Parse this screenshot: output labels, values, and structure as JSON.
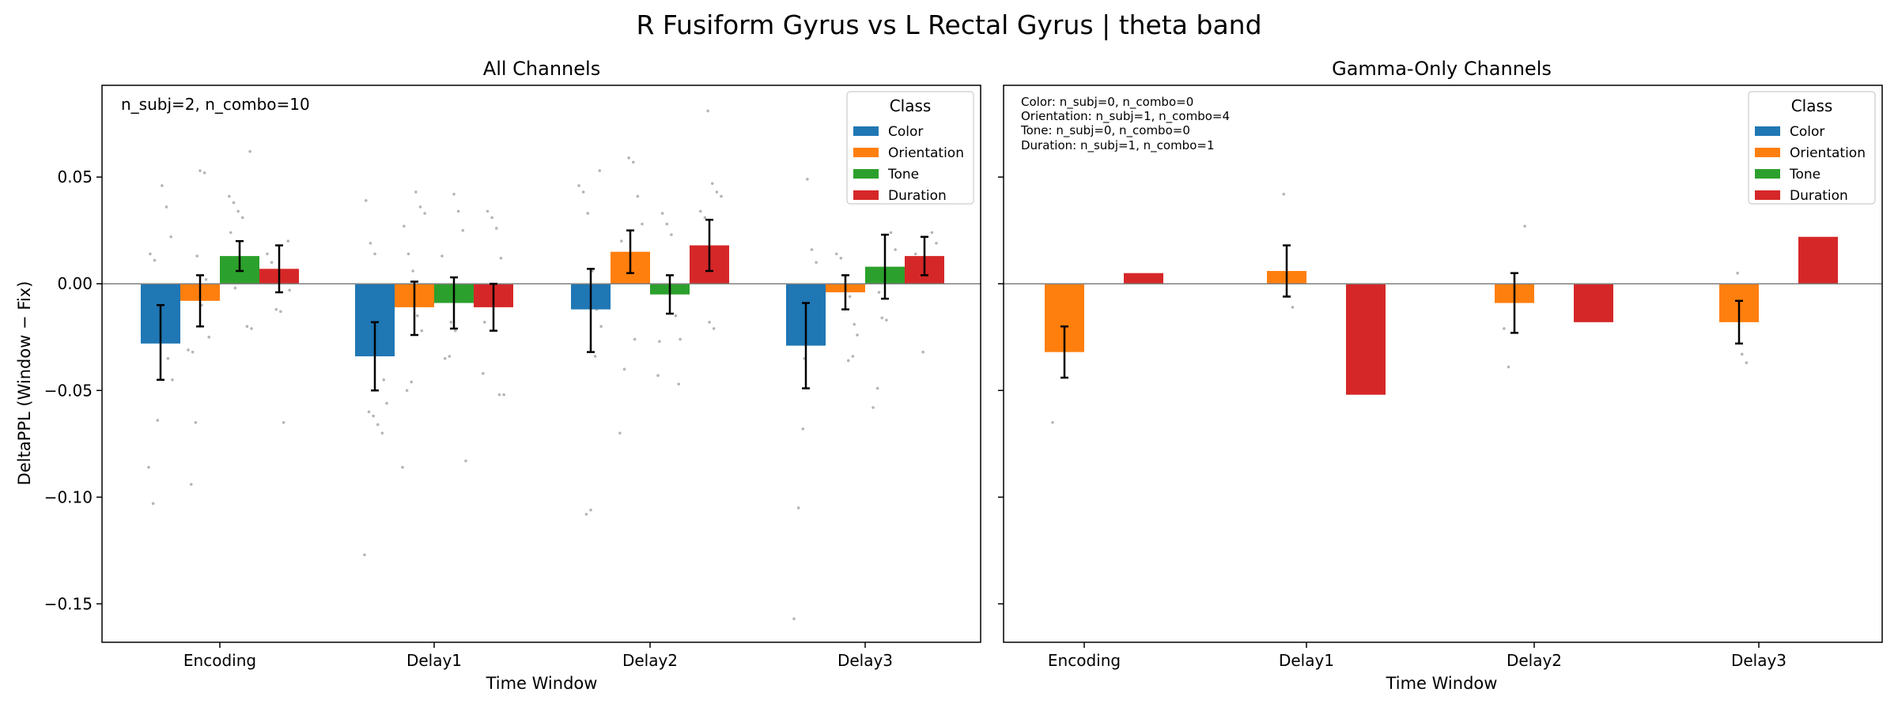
{
  "title": "R Fusiform Gyrus vs L Rectal Gyrus  |  theta band",
  "colors": {
    "Color": "#1f77b4",
    "Orientation": "#ff7f0e",
    "Tone": "#2ca02c",
    "Duration": "#d62728"
  },
  "panels": [
    {
      "title": "All Channels",
      "annotation_lines": [
        "n_subj=2, n_combo=10"
      ]
    },
    {
      "title": "Gamma-Only Channels",
      "annotation_lines": [
        "Color: n_subj=0, n_combo=0",
        "Orientation: n_subj=1, n_combo=4",
        "Tone: n_subj=0, n_combo=0",
        "Duration: n_subj=1, n_combo=1"
      ]
    }
  ],
  "legend": {
    "title": "Class",
    "entries": [
      "Color",
      "Orientation",
      "Tone",
      "Duration"
    ],
    "placement": "top-right"
  },
  "chart_data": [
    {
      "type": "bar",
      "title": "All Channels",
      "xlabel": "Time Window",
      "ylabel": "DeltaPPL (Window − Fix)",
      "categories": [
        "Encoding",
        "Delay1",
        "Delay2",
        "Delay3"
      ],
      "ylim": [
        -0.168,
        0.093
      ],
      "yticks": [
        0.05,
        0.0,
        -0.05,
        -0.1,
        -0.15
      ],
      "ytick_labels": [
        "0.05",
        "0.00",
        "−0.05",
        "−0.10",
        "−0.15"
      ],
      "zero_line": true,
      "legend_placement": "top-right",
      "series": [
        {
          "name": "Color",
          "values": [
            -0.028,
            -0.034,
            -0.012,
            -0.029
          ],
          "err_low": [
            -0.045,
            -0.05,
            -0.032,
            -0.049
          ],
          "err_high": [
            -0.01,
            -0.018,
            0.007,
            -0.009
          ]
        },
        {
          "name": "Orientation",
          "values": [
            -0.008,
            -0.011,
            0.015,
            -0.004
          ],
          "err_low": [
            -0.02,
            -0.024,
            0.005,
            -0.012
          ],
          "err_high": [
            0.004,
            0.001,
            0.025,
            0.004
          ]
        },
        {
          "name": "Tone",
          "values": [
            0.013,
            -0.009,
            -0.005,
            0.008
          ],
          "err_low": [
            0.006,
            -0.021,
            -0.014,
            -0.007
          ],
          "err_high": [
            0.02,
            0.003,
            0.004,
            0.023
          ]
        },
        {
          "name": "Duration",
          "values": [
            0.007,
            -0.011,
            0.018,
            0.013
          ],
          "err_low": [
            -0.004,
            -0.022,
            0.006,
            0.004
          ],
          "err_high": [
            0.018,
            0.0,
            0.03,
            0.022
          ]
        }
      ],
      "scatter_points": [
        [
          0,
          0,
          -0.086
        ],
        [
          0,
          0,
          -0.103
        ],
        [
          0,
          0,
          -0.064
        ],
        [
          0,
          0,
          0.046
        ],
        [
          0,
          0,
          0.036
        ],
        [
          0,
          0,
          0.022
        ],
        [
          0,
          0,
          0.014
        ],
        [
          0,
          0,
          0.011
        ],
        [
          0,
          0,
          -0.005
        ],
        [
          0,
          0,
          -0.015
        ],
        [
          0,
          0,
          -0.035
        ],
        [
          0,
          0,
          -0.045
        ],
        [
          0,
          1,
          -0.094
        ],
        [
          0,
          1,
          -0.065
        ],
        [
          0,
          1,
          0.053
        ],
        [
          0,
          1,
          0.052
        ],
        [
          0,
          1,
          -0.025
        ],
        [
          0,
          1,
          -0.031
        ],
        [
          0,
          1,
          -0.032
        ],
        [
          0,
          1,
          0.013
        ],
        [
          0,
          1,
          -0.01
        ],
        [
          0,
          1,
          0.002
        ],
        [
          0,
          2,
          0.062
        ],
        [
          0,
          2,
          0.041
        ],
        [
          0,
          2,
          0.038
        ],
        [
          0,
          2,
          0.034
        ],
        [
          0,
          2,
          0.031
        ],
        [
          0,
          2,
          -0.02
        ],
        [
          0,
          2,
          -0.021
        ],
        [
          0,
          2,
          0.024
        ],
        [
          0,
          2,
          -0.002
        ],
        [
          0,
          2,
          0.009
        ],
        [
          0,
          3,
          -0.065
        ],
        [
          0,
          3,
          0.02
        ],
        [
          0,
          3,
          0.014
        ],
        [
          0,
          3,
          0.01
        ],
        [
          0,
          3,
          -0.012
        ],
        [
          0,
          3,
          -0.013
        ],
        [
          0,
          3,
          0.004
        ],
        [
          0,
          3,
          -0.003
        ],
        [
          1,
          0,
          -0.127
        ],
        [
          1,
          0,
          -0.06
        ],
        [
          1,
          0,
          -0.062
        ],
        [
          1,
          0,
          -0.066
        ],
        [
          1,
          0,
          -0.07
        ],
        [
          1,
          0,
          -0.056
        ],
        [
          1,
          0,
          0.039
        ],
        [
          1,
          0,
          0.019
        ],
        [
          1,
          0,
          0.014
        ],
        [
          1,
          0,
          -0.033
        ],
        [
          1,
          0,
          -0.045
        ],
        [
          1,
          1,
          -0.086
        ],
        [
          1,
          1,
          -0.05
        ],
        [
          1,
          1,
          -0.046
        ],
        [
          1,
          1,
          0.043
        ],
        [
          1,
          1,
          0.036
        ],
        [
          1,
          1,
          0.033
        ],
        [
          1,
          1,
          0.027
        ],
        [
          1,
          1,
          0.014
        ],
        [
          1,
          1,
          0.006
        ],
        [
          1,
          1,
          -0.015
        ],
        [
          1,
          1,
          -0.022
        ],
        [
          1,
          2,
          -0.083
        ],
        [
          1,
          2,
          -0.035
        ],
        [
          1,
          2,
          -0.034
        ],
        [
          1,
          2,
          0.042
        ],
        [
          1,
          2,
          0.034
        ],
        [
          1,
          2,
          0.025
        ],
        [
          1,
          2,
          0.013
        ],
        [
          1,
          2,
          -0.004
        ],
        [
          1,
          2,
          -0.018
        ],
        [
          1,
          2,
          -0.022
        ],
        [
          1,
          3,
          -0.052
        ],
        [
          1,
          3,
          -0.052
        ],
        [
          1,
          3,
          -0.042
        ],
        [
          1,
          3,
          0.034
        ],
        [
          1,
          3,
          0.031
        ],
        [
          1,
          3,
          0.026
        ],
        [
          1,
          3,
          0.012
        ],
        [
          1,
          3,
          -0.006
        ],
        [
          1,
          3,
          -0.018
        ],
        [
          2,
          0,
          -0.108
        ],
        [
          2,
          0,
          -0.106
        ],
        [
          2,
          0,
          -0.034
        ],
        [
          2,
          0,
          0.053
        ],
        [
          2,
          0,
          0.046
        ],
        [
          2,
          0,
          0.043
        ],
        [
          2,
          0,
          0.033
        ],
        [
          2,
          0,
          0.006
        ],
        [
          2,
          0,
          -0.012
        ],
        [
          2,
          0,
          -0.02
        ],
        [
          2,
          1,
          -0.07
        ],
        [
          2,
          1,
          -0.04
        ],
        [
          2,
          1,
          0.059
        ],
        [
          2,
          1,
          0.057
        ],
        [
          2,
          1,
          0.041
        ],
        [
          2,
          1,
          0.028
        ],
        [
          2,
          1,
          0.02
        ],
        [
          2,
          1,
          0.013
        ],
        [
          2,
          1,
          0.003
        ],
        [
          2,
          1,
          -0.026
        ],
        [
          2,
          2,
          -0.047
        ],
        [
          2,
          2,
          -0.043
        ],
        [
          2,
          2,
          0.033
        ],
        [
          2,
          2,
          0.028
        ],
        [
          2,
          2,
          0.023
        ],
        [
          2,
          2,
          -0.015
        ],
        [
          2,
          2,
          -0.026
        ],
        [
          2,
          2,
          -0.027
        ],
        [
          2,
          2,
          -0.004
        ],
        [
          2,
          3,
          0.081
        ],
        [
          2,
          3,
          0.047
        ],
        [
          2,
          3,
          0.043
        ],
        [
          2,
          3,
          0.041
        ],
        [
          2,
          3,
          0.034
        ],
        [
          2,
          3,
          0.031
        ],
        [
          2,
          3,
          -0.018
        ],
        [
          2,
          3,
          -0.021
        ],
        [
          2,
          3,
          0.007
        ],
        [
          3,
          0,
          -0.157
        ],
        [
          3,
          0,
          -0.105
        ],
        [
          3,
          0,
          -0.068
        ],
        [
          3,
          0,
          0.049
        ],
        [
          3,
          0,
          0.016
        ],
        [
          3,
          0,
          0.01
        ],
        [
          3,
          0,
          -0.007
        ],
        [
          3,
          0,
          -0.013
        ],
        [
          3,
          0,
          -0.035
        ],
        [
          3,
          1,
          -0.036
        ],
        [
          3,
          1,
          -0.034
        ],
        [
          3,
          1,
          -0.024
        ],
        [
          3,
          1,
          0.014
        ],
        [
          3,
          1,
          0.012
        ],
        [
          3,
          1,
          0.004
        ],
        [
          3,
          1,
          -0.006
        ],
        [
          3,
          1,
          -0.019
        ],
        [
          3,
          2,
          -0.058
        ],
        [
          3,
          2,
          -0.049
        ],
        [
          3,
          2,
          -0.016
        ],
        [
          3,
          2,
          -0.017
        ],
        [
          3,
          2,
          0.024
        ],
        [
          3,
          2,
          0.016
        ],
        [
          3,
          2,
          0.005
        ],
        [
          3,
          2,
          -0.004
        ],
        [
          3,
          3,
          -0.032
        ],
        [
          3,
          3,
          0.045
        ],
        [
          3,
          3,
          0.024
        ],
        [
          3,
          3,
          0.019
        ],
        [
          3,
          3,
          0.014
        ],
        [
          3,
          3,
          0.008
        ],
        [
          3,
          3,
          0.001
        ]
      ]
    },
    {
      "type": "bar",
      "title": "Gamma-Only Channels",
      "xlabel": "Time Window",
      "categories": [
        "Encoding",
        "Delay1",
        "Delay2",
        "Delay3"
      ],
      "ylim": [
        -0.168,
        0.093
      ],
      "zero_line": true,
      "legend_placement": "top-right",
      "series": [
        {
          "name": "Color",
          "values": [
            null,
            null,
            null,
            null
          ],
          "err_low": [
            null,
            null,
            null,
            null
          ],
          "err_high": [
            null,
            null,
            null,
            null
          ]
        },
        {
          "name": "Orientation",
          "values": [
            -0.032,
            0.006,
            -0.009,
            -0.018
          ],
          "err_low": [
            -0.044,
            -0.006,
            -0.023,
            -0.028
          ],
          "err_high": [
            -0.02,
            0.018,
            0.005,
            -0.008
          ]
        },
        {
          "name": "Tone",
          "values": [
            null,
            null,
            null,
            null
          ],
          "err_low": [
            null,
            null,
            null,
            null
          ],
          "err_high": [
            null,
            null,
            null,
            null
          ]
        },
        {
          "name": "Duration",
          "values": [
            0.005,
            -0.052,
            -0.018,
            0.022
          ],
          "err_low": [
            null,
            null,
            null,
            null
          ],
          "err_high": [
            null,
            null,
            null,
            null
          ]
        }
      ],
      "scatter_points": [
        [
          0,
          1,
          -0.065
        ],
        [
          0,
          1,
          -0.006
        ],
        [
          1,
          1,
          0.042
        ],
        [
          1,
          1,
          -0.006
        ],
        [
          1,
          1,
          -0.011
        ],
        [
          2,
          1,
          0.027
        ],
        [
          2,
          1,
          -0.021
        ],
        [
          2,
          1,
          -0.039
        ],
        [
          3,
          1,
          0.005
        ],
        [
          3,
          1,
          -0.033
        ],
        [
          3,
          1,
          -0.037
        ]
      ]
    }
  ]
}
